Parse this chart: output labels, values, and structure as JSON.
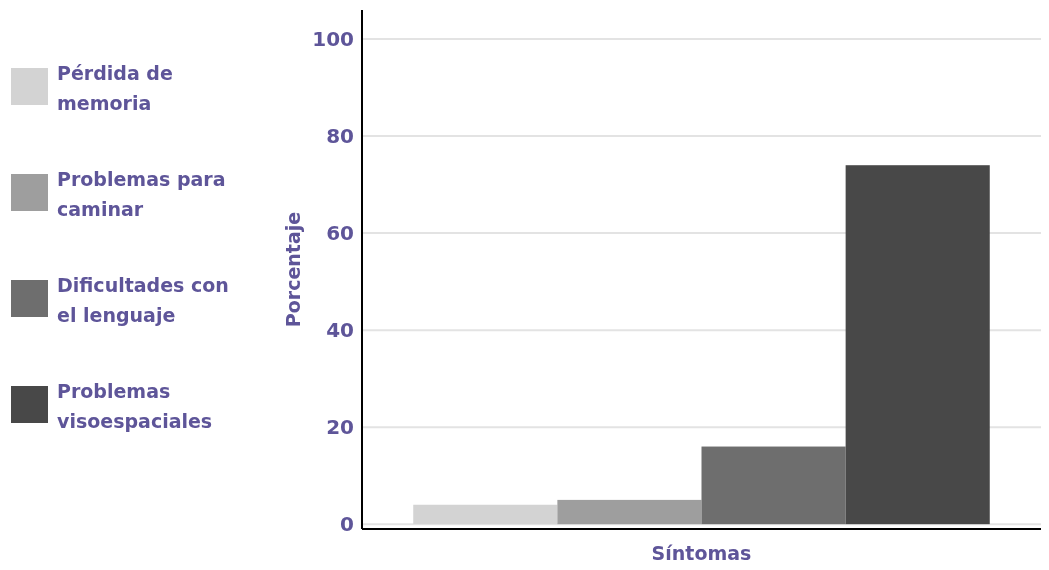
{
  "chart_data": {
    "type": "bar",
    "xlabel": "Síntomas",
    "ylabel": "Porcentaje",
    "categories": [
      null
    ],
    "series": [
      {
        "name": "Pérdida de memoria",
        "color": "#d3d3d3",
        "values": [
          4
        ]
      },
      {
        "name": "Problemas para caminar",
        "color": "#9e9e9e",
        "values": [
          5
        ]
      },
      {
        "name": "Dificultades con el lenguaje",
        "color": "#6e6e6e",
        "values": [
          16
        ]
      },
      {
        "name": "Problemas visoespaciales",
        "color": "#484848",
        "values": [
          74
        ]
      }
    ],
    "ylim": [
      -1,
      106
    ],
    "yticks": [
      0,
      20,
      40,
      60,
      80,
      100
    ],
    "grid": "y",
    "legend": "left"
  }
}
